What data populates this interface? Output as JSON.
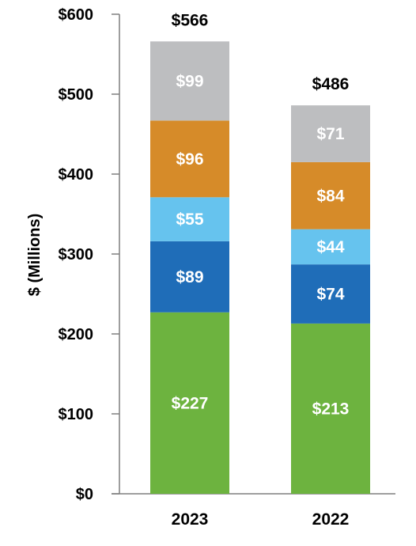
{
  "chart_data": {
    "type": "bar",
    "stacked": true,
    "title": "",
    "xlabel": "",
    "ylabel": "$ (Millions)",
    "ylim": [
      0,
      600
    ],
    "yticks": [
      0,
      100,
      200,
      300,
      400,
      500,
      600
    ],
    "ytick_labels": [
      "$0",
      "$100",
      "$200",
      "$300",
      "$400",
      "$500",
      "$600"
    ],
    "categories": [
      "2023",
      "2022"
    ],
    "totals": [
      566,
      486
    ],
    "total_labels": [
      "$566",
      "$486"
    ],
    "grid": false,
    "legend": "none",
    "series": [
      {
        "values": [
          227,
          213
        ],
        "labels": [
          "$227",
          "$213"
        ],
        "color": "#6DB33F"
      },
      {
        "values": [
          89,
          74
        ],
        "labels": [
          "$89",
          "$74"
        ],
        "color": "#1F6DB8"
      },
      {
        "values": [
          55,
          44
        ],
        "labels": [
          "$55",
          "$44"
        ],
        "color": "#66C3EE"
      },
      {
        "values": [
          96,
          84
        ],
        "labels": [
          "$96",
          "$84"
        ],
        "color": "#D68B29"
      },
      {
        "values": [
          99,
          71
        ],
        "labels": [
          "$99",
          "$71"
        ],
        "color": "#BDBEC0"
      }
    ]
  }
}
